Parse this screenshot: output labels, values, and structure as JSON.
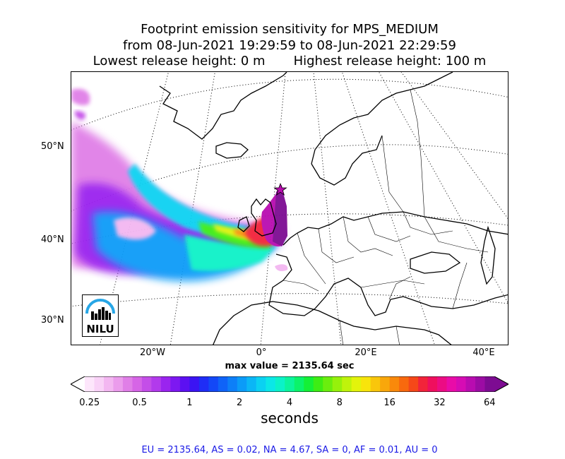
{
  "title": {
    "line1": "Footprint emission sensitivity for MPS_MEDIUM",
    "line2": "from 08-Jun-2021 19:29:59 to 08-Jun-2021 22:29:59",
    "line3": "Lowest release height: 0 m       Highest release height: 100 m"
  },
  "map": {
    "lat_labels": [
      "50°N",
      "40°N",
      "30°N"
    ],
    "lon_labels": [
      "20°W",
      "0°",
      "20°E",
      "40°E"
    ],
    "release_marker": "star",
    "logo_text": "NILU"
  },
  "max_value_text": "max value = 2135.64 sec",
  "colorbar": {
    "ticks": [
      "0.25",
      "0.5",
      "1",
      "2",
      "4",
      "8",
      "16",
      "32",
      "64"
    ],
    "units": "seconds",
    "colors": [
      "#fde6fb",
      "#f9d2f7",
      "#f3b7f1",
      "#eb9cec",
      "#e07fe7",
      "#d665e6",
      "#c44ee8",
      "#b23aec",
      "#9a24ef",
      "#7d18f1",
      "#5c10f2",
      "#3b14f3",
      "#1f2df6",
      "#1348f7",
      "#0f63f8",
      "#0d7ff8",
      "#0b9bf8",
      "#0bb6f6",
      "#0bd1f2",
      "#0be7e7",
      "#0bf2c8",
      "#0bf49c",
      "#0bf36a",
      "#14f036",
      "#3ded14",
      "#6aee0e",
      "#96f10b",
      "#bff30b",
      "#e3f30b",
      "#f8e40b",
      "#f9c60b",
      "#f9a70b",
      "#f9890b",
      "#f8690e",
      "#f54819",
      "#f2243a",
      "#ef0f5e",
      "#ec0c84",
      "#e90ca8",
      "#d60cb4",
      "#b90cb0",
      "#9c0ca4",
      "#7d0c92"
    ]
  },
  "stats_text": "EU = 2135.64,  AS = 0.02,  NA = 4.67,  SA = 0,  AF = 0.01,  AU = 0"
}
